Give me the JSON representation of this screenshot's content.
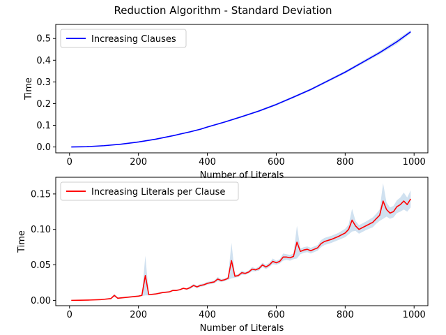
{
  "figure": {
    "title": "Reduction Algorithm - Standard Deviation"
  },
  "colors": {
    "top_line": "#0000ff",
    "bottom_line": "#ff0000",
    "band": "#a9c8e3",
    "axes": "#000000",
    "legend_border": "#cccccc"
  },
  "chart_data": [
    {
      "type": "line",
      "title": "",
      "xlabel": "Number of Literals",
      "ylabel": "Time",
      "xlim": [
        -40,
        1040
      ],
      "ylim": [
        -0.027,
        0.565
      ],
      "xticks": [
        0,
        200,
        400,
        600,
        800,
        1000
      ],
      "xtick_labels": [
        "0",
        "200",
        "400",
        "600",
        "800",
        "1000"
      ],
      "yticks": [
        0.0,
        0.1,
        0.2,
        0.3,
        0.4,
        0.5
      ],
      "ytick_labels": [
        "0.0",
        "0.1",
        "0.2",
        "0.3",
        "0.4",
        "0.5"
      ],
      "legend": "top-left",
      "grid": false,
      "series": [
        {
          "name": "Increasing Clauses",
          "color": "#0000ff",
          "x": [
            5,
            50,
            100,
            150,
            200,
            250,
            300,
            350,
            380,
            400,
            450,
            500,
            550,
            600,
            650,
            700,
            750,
            800,
            850,
            900,
            950,
            990
          ],
          "y": [
            0.0,
            0.0015,
            0.006,
            0.013,
            0.023,
            0.036,
            0.052,
            0.07,
            0.082,
            0.092,
            0.115,
            0.14,
            0.166,
            0.196,
            0.23,
            0.265,
            0.305,
            0.345,
            0.39,
            0.435,
            0.485,
            0.531
          ],
          "band": [
            0.0,
            0.0,
            0.0005,
            0.001,
            0.0015,
            0.002,
            0.002,
            0.003,
            0.003,
            0.003,
            0.003,
            0.004,
            0.004,
            0.005,
            0.005,
            0.005,
            0.006,
            0.006,
            0.007,
            0.008,
            0.01,
            0.008
          ]
        }
      ]
    },
    {
      "type": "line",
      "title": "",
      "xlabel": "Number of Literals",
      "ylabel": "Time",
      "xlim": [
        -40,
        1040
      ],
      "ylim": [
        -0.0075,
        0.1735
      ],
      "xticks": [
        0,
        200,
        400,
        600,
        800,
        1000
      ],
      "xtick_labels": [
        "0",
        "200",
        "400",
        "600",
        "800",
        "1000"
      ],
      "yticks": [
        0.0,
        0.05,
        0.1,
        0.15
      ],
      "ytick_labels": [
        "0.00",
        "0.05",
        "0.10",
        "0.15"
      ],
      "legend": "top-left",
      "grid": false,
      "series": [
        {
          "name": "Increasing Literals per Clause",
          "color": "#ff0000",
          "x": [
            5,
            30,
            60,
            90,
            120,
            130,
            140,
            160,
            180,
            200,
            210,
            220,
            230,
            250,
            270,
            290,
            300,
            310,
            320,
            330,
            340,
            350,
            360,
            370,
            380,
            390,
            400,
            410,
            420,
            430,
            440,
            450,
            460,
            470,
            480,
            490,
            500,
            510,
            520,
            530,
            540,
            550,
            560,
            570,
            580,
            590,
            600,
            610,
            620,
            630,
            640,
            650,
            660,
            670,
            680,
            690,
            700,
            710,
            720,
            730,
            740,
            760,
            780,
            800,
            810,
            820,
            830,
            840,
            860,
            880,
            890,
            900,
            910,
            920,
            930,
            940,
            950,
            960,
            970,
            980,
            990
          ],
          "y": [
            0.0,
            0.0002,
            0.0005,
            0.001,
            0.0025,
            0.007,
            0.003,
            0.004,
            0.005,
            0.006,
            0.007,
            0.035,
            0.008,
            0.009,
            0.011,
            0.012,
            0.014,
            0.014,
            0.015,
            0.017,
            0.016,
            0.018,
            0.021,
            0.019,
            0.021,
            0.022,
            0.024,
            0.025,
            0.026,
            0.03,
            0.028,
            0.029,
            0.031,
            0.056,
            0.034,
            0.035,
            0.039,
            0.038,
            0.04,
            0.044,
            0.043,
            0.045,
            0.05,
            0.047,
            0.05,
            0.055,
            0.053,
            0.055,
            0.061,
            0.061,
            0.06,
            0.062,
            0.082,
            0.069,
            0.071,
            0.072,
            0.07,
            0.072,
            0.074,
            0.08,
            0.083,
            0.086,
            0.09,
            0.095,
            0.1,
            0.113,
            0.105,
            0.1,
            0.105,
            0.11,
            0.115,
            0.12,
            0.14,
            0.128,
            0.123,
            0.125,
            0.132,
            0.135,
            0.14,
            0.135,
            0.143
          ],
          "band": [
            0.0,
            0.0,
            0.0,
            0.0005,
            0.001,
            0.002,
            0.001,
            0.001,
            0.001,
            0.001,
            0.001,
            0.028,
            0.001,
            0.001,
            0.001,
            0.001,
            0.001,
            0.001,
            0.001,
            0.001,
            0.001,
            0.002,
            0.002,
            0.002,
            0.002,
            0.002,
            0.002,
            0.002,
            0.002,
            0.003,
            0.002,
            0.002,
            0.002,
            0.025,
            0.002,
            0.002,
            0.003,
            0.002,
            0.002,
            0.003,
            0.002,
            0.003,
            0.003,
            0.003,
            0.003,
            0.004,
            0.003,
            0.003,
            0.005,
            0.004,
            0.004,
            0.004,
            0.023,
            0.004,
            0.004,
            0.004,
            0.004,
            0.004,
            0.004,
            0.005,
            0.005,
            0.005,
            0.005,
            0.006,
            0.007,
            0.016,
            0.007,
            0.006,
            0.006,
            0.007,
            0.007,
            0.008,
            0.025,
            0.01,
            0.008,
            0.008,
            0.009,
            0.01,
            0.012,
            0.01,
            0.012
          ]
        }
      ]
    }
  ]
}
